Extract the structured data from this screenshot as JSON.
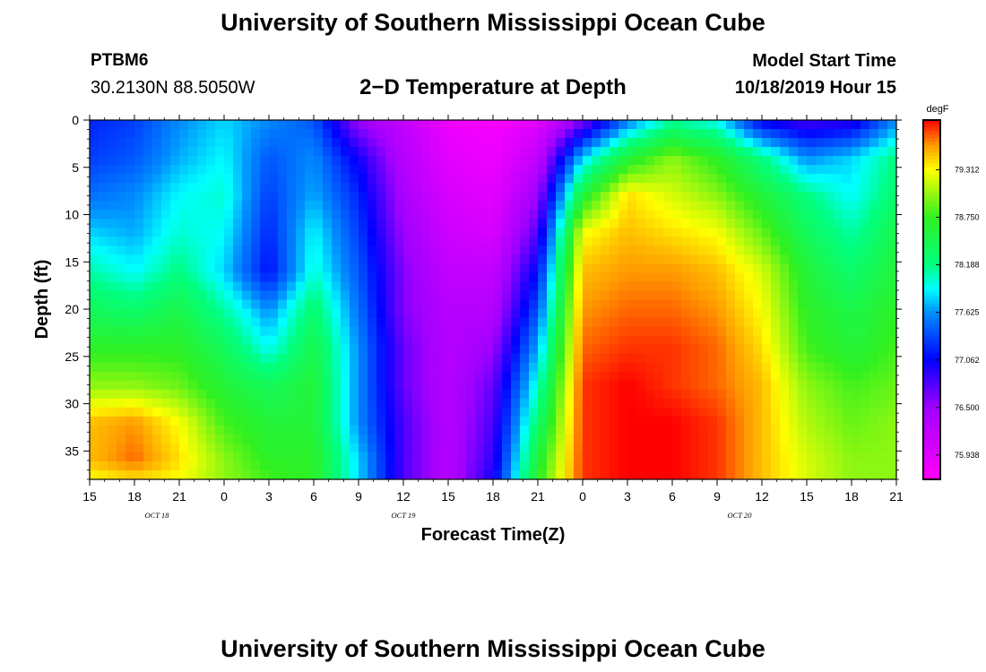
{
  "header": {
    "title": "University of Southern Mississippi Ocean Cube",
    "station_id": "PTBM6",
    "coords": "30.2130N 88.5050W",
    "plot_title": "2−D Temperature at Depth",
    "model_start_label": "Model Start Time",
    "model_start_value": "10/18/2019 Hour 15"
  },
  "footer": {
    "title": "University of Southern Mississippi Ocean Cube"
  },
  "chart_data": {
    "type": "heatmap",
    "title": "2−D Temperature at Depth",
    "xlabel": "Forecast Time(Z)",
    "ylabel": "Depth (ft)",
    "x_tick_labels": [
      "15",
      "18",
      "21",
      "0",
      "3",
      "6",
      "9",
      "12",
      "15",
      "18",
      "21",
      "0",
      "3",
      "6",
      "9",
      "12",
      "15",
      "18",
      "21"
    ],
    "x_hours_since_start": [
      0,
      3,
      6,
      9,
      12,
      15,
      18,
      21,
      24,
      27,
      30,
      33,
      36,
      39,
      42,
      45,
      48,
      51,
      54
    ],
    "date_labels": [
      {
        "label": "OCT 18",
        "hour": 4.5
      },
      {
        "label": "OCT 19",
        "hour": 21
      },
      {
        "label": "OCT 20",
        "hour": 43.5
      }
    ],
    "y_ticks": [
      0,
      5,
      10,
      15,
      20,
      25,
      30,
      35
    ],
    "ylim": [
      38,
      0
    ],
    "colorbar": {
      "unit": "degF",
      "tick_values": [
        79.312,
        78.75,
        78.188,
        77.625,
        77.062,
        76.5,
        75.938
      ],
      "tick_labels": [
        "79.312",
        "78.750",
        "78.188",
        "77.625",
        "77.062",
        "76.500",
        "75.938"
      ],
      "range": [
        75.65,
        79.9
      ],
      "stops": [
        {
          "v": 75.65,
          "color": "#ff00ff"
        },
        {
          "v": 76.5,
          "color": "#a000ff"
        },
        {
          "v": 77.062,
          "color": "#0000ff"
        },
        {
          "v": 77.625,
          "color": "#0090ff"
        },
        {
          "v": 77.9,
          "color": "#00ffff"
        },
        {
          "v": 78.188,
          "color": "#00ff80"
        },
        {
          "v": 78.75,
          "color": "#30f020"
        },
        {
          "v": 79.312,
          "color": "#ffff00"
        },
        {
          "v": 79.6,
          "color": "#ff9a00"
        },
        {
          "v": 79.9,
          "color": "#ff0000"
        }
      ]
    },
    "grid": false,
    "depths": [
      0,
      4,
      8,
      12,
      16,
      20,
      24,
      28,
      32,
      36,
      38
    ],
    "hours": [
      0,
      3,
      6,
      9,
      12,
      15,
      18,
      21,
      24,
      27,
      30,
      33,
      36,
      39,
      42,
      45,
      48,
      51,
      54
    ],
    "temperature": [
      [
        77.2,
        77.3,
        77.6,
        77.8,
        77.6,
        77.4,
        76.5,
        76.2,
        75.8,
        75.7,
        75.9,
        76.6,
        77.5,
        78.1,
        77.9,
        77.0,
        76.8,
        76.9,
        77.6
      ],
      [
        77.3,
        77.4,
        77.7,
        77.9,
        77.4,
        77.6,
        77.0,
        76.3,
        75.9,
        75.8,
        76.2,
        77.8,
        78.6,
        79.0,
        78.7,
        78.2,
        77.6,
        77.8,
        78.2
      ],
      [
        77.5,
        77.6,
        77.9,
        78.0,
        77.3,
        77.7,
        77.2,
        76.4,
        76.0,
        75.9,
        76.5,
        78.6,
        79.4,
        79.2,
        79.0,
        78.6,
        78.2,
        77.9,
        78.3
      ],
      [
        77.8,
        77.7,
        78.0,
        77.9,
        77.2,
        77.9,
        77.3,
        76.5,
        76.1,
        76.0,
        76.8,
        79.3,
        79.5,
        79.4,
        79.3,
        78.9,
        78.4,
        78.1,
        78.5
      ],
      [
        78.1,
        77.9,
        78.2,
        77.8,
        77.1,
        78.0,
        77.4,
        76.6,
        76.2,
        76.2,
        77.1,
        79.5,
        79.6,
        79.6,
        79.5,
        79.2,
        78.6,
        78.3,
        78.6
      ],
      [
        78.4,
        78.3,
        78.5,
        78.1,
        77.6,
        78.3,
        77.5,
        76.6,
        76.3,
        76.3,
        77.4,
        79.6,
        79.7,
        79.7,
        79.6,
        79.3,
        78.7,
        78.5,
        78.7
      ],
      [
        78.7,
        78.7,
        78.7,
        78.4,
        77.9,
        78.5,
        77.6,
        76.7,
        76.3,
        76.5,
        77.7,
        79.7,
        79.8,
        79.8,
        79.7,
        79.4,
        78.8,
        78.6,
        78.8
      ],
      [
        79.0,
        79.0,
        78.9,
        78.6,
        78.4,
        78.6,
        77.6,
        76.7,
        76.3,
        76.7,
        78.0,
        79.8,
        79.9,
        79.8,
        79.7,
        79.5,
        79.0,
        78.8,
        78.9
      ],
      [
        79.5,
        79.6,
        79.3,
        78.8,
        78.6,
        78.6,
        77.6,
        76.8,
        76.3,
        76.8,
        78.3,
        79.8,
        79.9,
        79.9,
        79.8,
        79.5,
        79.1,
        78.9,
        79.0
      ],
      [
        79.5,
        79.7,
        79.4,
        79.0,
        78.7,
        78.7,
        77.8,
        76.8,
        76.3,
        76.9,
        78.6,
        79.8,
        79.9,
        79.9,
        79.8,
        79.5,
        79.2,
        79.0,
        79.0
      ],
      [
        79.3,
        79.4,
        79.3,
        79.0,
        78.8,
        78.7,
        77.8,
        76.8,
        76.3,
        77.0,
        78.7,
        79.8,
        79.9,
        79.9,
        79.8,
        79.5,
        79.2,
        79.0,
        79.0
      ]
    ]
  }
}
